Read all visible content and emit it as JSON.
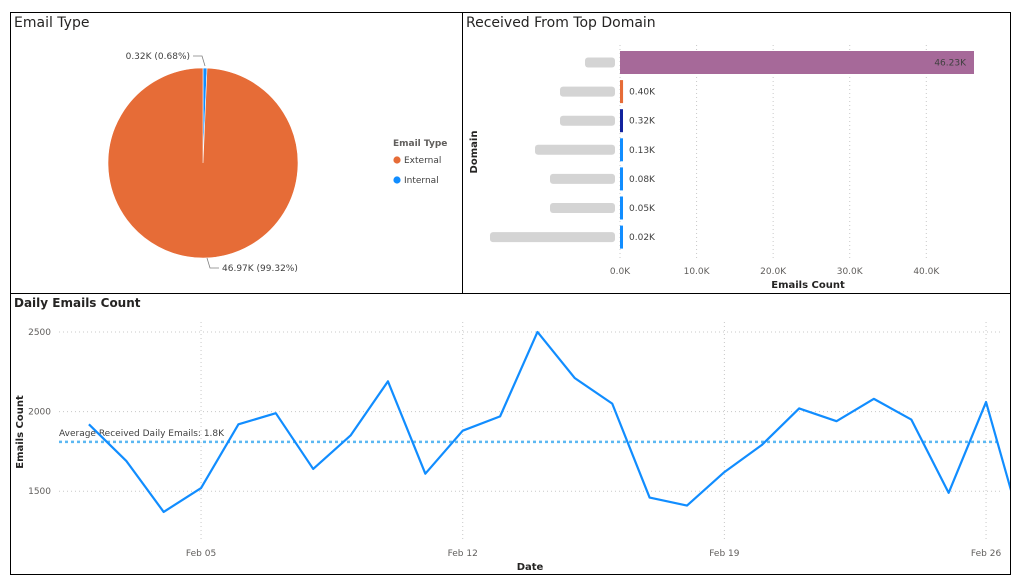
{
  "chart_data": [
    {
      "type": "pie",
      "title": "Email Type",
      "legend_title": "Email Type",
      "legend_position": "right",
      "slices": [
        {
          "name": "External",
          "value": 46.97,
          "label": "46.97K (99.32%)",
          "color": "#E66C37"
        },
        {
          "name": "Internal",
          "value": 0.32,
          "label": "0.32K (0.68%)",
          "color": "#118DFF"
        }
      ]
    },
    {
      "type": "bar",
      "orientation": "horizontal",
      "title": "Received From Top Domain",
      "xlabel": "Emails Count",
      "ylabel": "Domain",
      "xlim": [
        0,
        46.23
      ],
      "x_ticks": [
        "0.0K",
        "10.0K",
        "20.0K",
        "30.0K",
        "40.0K"
      ],
      "x_tick_values": [
        0,
        10,
        20,
        30,
        40
      ],
      "grid": true,
      "bars": [
        {
          "value": 46.23,
          "label": "46.23K",
          "color": "#A66999"
        },
        {
          "value": 0.4,
          "label": "0.40K",
          "color": "#E66C37"
        },
        {
          "value": 0.32,
          "label": "0.32K",
          "color": "#12239E"
        },
        {
          "value": 0.13,
          "label": "0.13K",
          "color": "#118DFF"
        },
        {
          "value": 0.08,
          "label": "0.08K",
          "color": "#118DFF"
        },
        {
          "value": 0.05,
          "label": "0.05K",
          "color": "#118DFF"
        },
        {
          "value": 0.02,
          "label": "0.02K",
          "color": "#118DFF"
        }
      ]
    },
    {
      "type": "line",
      "title": "Daily Emails Count",
      "xlabel": "Date",
      "ylabel": "Emails Count",
      "ylim": [
        1200,
        2550
      ],
      "y_ticks": [
        1500,
        2000,
        2500
      ],
      "x_ticks": [
        {
          "label": "Feb 05",
          "day": 5
        },
        {
          "label": "Feb 12",
          "day": 12
        },
        {
          "label": "Feb 19",
          "day": 19
        },
        {
          "label": "Feb 26",
          "day": 26
        }
      ],
      "x_range": [
        1.2,
        26.4
      ],
      "grid": true,
      "color": "#118DFF",
      "average": {
        "value": 1810,
        "label": "Average Received Daily Emails: 1.8K",
        "color": "#5CB8F2"
      },
      "points": [
        {
          "day": 2,
          "value": 1920
        },
        {
          "day": 3,
          "value": 1690
        },
        {
          "day": 4,
          "value": 1370
        },
        {
          "day": 5,
          "value": 1520
        },
        {
          "day": 6,
          "value": 1920
        },
        {
          "day": 7,
          "value": 1990
        },
        {
          "day": 8,
          "value": 1640
        },
        {
          "day": 9,
          "value": 1850
        },
        {
          "day": 10,
          "value": 2190
        },
        {
          "day": 11,
          "value": 1610
        },
        {
          "day": 12,
          "value": 1880
        },
        {
          "day": 13,
          "value": 1970
        },
        {
          "day": 14,
          "value": 2500
        },
        {
          "day": 15,
          "value": 2210
        },
        {
          "day": 16,
          "value": 2050
        },
        {
          "day": 17,
          "value": 1460
        },
        {
          "day": 18,
          "value": 1410
        },
        {
          "day": 19,
          "value": 1620
        },
        {
          "day": 20,
          "value": 1790
        },
        {
          "day": 21,
          "value": 2020
        },
        {
          "day": 22,
          "value": 1940
        },
        {
          "day": 23,
          "value": 2080
        },
        {
          "day": 24,
          "value": 1950
        },
        {
          "day": 25,
          "value": 1490
        },
        {
          "day": 26,
          "value": 2060
        },
        {
          "day": 27,
          "value": 1230
        }
      ]
    }
  ]
}
